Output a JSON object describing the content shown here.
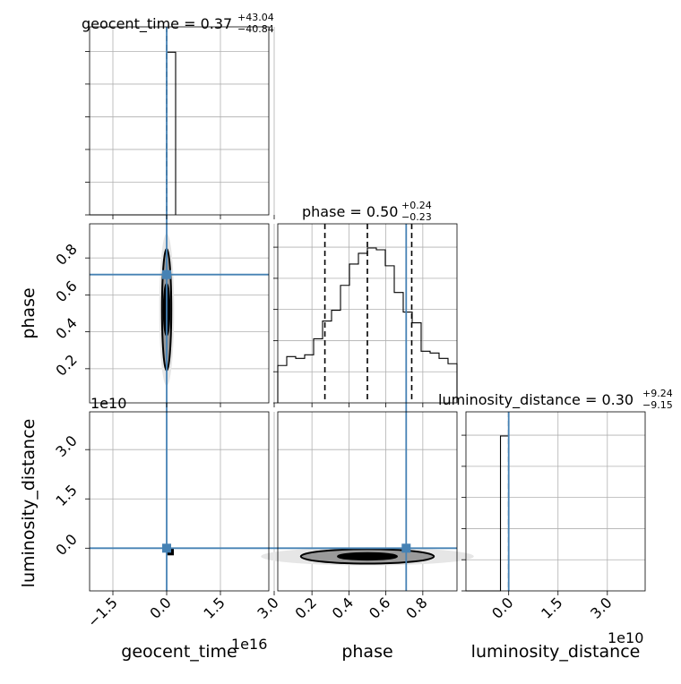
{
  "chart_data": {
    "type": "corner",
    "parameters": [
      "geocent_time",
      "phase",
      "luminosity_distance"
    ],
    "truth": {
      "geocent_time": 0.0,
      "phase": 0.71,
      "luminosity_distance": 0.0
    },
    "titles": {
      "geocent_time": {
        "prefix": "geocent_time = 0.37",
        "plus": "+43.04",
        "minus": "−40.84"
      },
      "phase": {
        "prefix": "phase = 0.50",
        "plus": "+0.24",
        "minus": "−0.23"
      },
      "luminosity_distance": {
        "prefix": "luminosity_distance = 0.30",
        "plus": "+9.24",
        "minus": "−9.15"
      }
    },
    "xlabels": {
      "geocent_time": "geocent_time",
      "phase": "phase",
      "luminosity_distance": "luminosity_distance"
    },
    "ylabels": {
      "phase": "phase",
      "luminosity_distance": "luminosity_distance"
    },
    "offsets": {
      "geocent_time_x": "1e16",
      "luminosity_distance_y": "1e10",
      "luminosity_distance_x": "1e10"
    },
    "ranges": {
      "geocent_time": [
        -2.15,
        2.85
      ],
      "phase": [
        0.015,
        0.985
      ],
      "luminosity_distance": [
        -1.3,
        4.15
      ]
    },
    "ticks": {
      "geocent_time": {
        "values": [
          -1.5,
          0.0,
          1.5,
          3.0
        ],
        "labels": [
          "−1.5",
          "0.0",
          "1.5",
          "3.0"
        ]
      },
      "phase": {
        "values": [
          0.2,
          0.4,
          0.6,
          0.8
        ],
        "labels": [
          "0.2",
          "0.4",
          "0.6",
          "0.8"
        ]
      },
      "luminosity_distance": {
        "values": [
          0.0,
          1.5,
          3.0
        ],
        "labels": [
          "0.0",
          "1.5",
          "3.0"
        ]
      }
    },
    "quantile_lines": {
      "geocent_time": [
        0.0
      ],
      "phase": [
        0.27,
        0.5,
        0.74
      ],
      "luminosity_distance": [
        0.0
      ]
    },
    "hist_geocent_time": {
      "edges": [
        -2.15,
        0.0,
        0.25
      ],
      "counts": [
        0,
        1.0
      ]
    },
    "hist_luminosity_distance": {
      "edges": [
        -1.3,
        -0.25,
        0.0
      ],
      "counts": [
        0,
        1.0
      ]
    },
    "hist_phase": {
      "edges": [
        0.015,
        0.0635,
        0.112,
        0.1605,
        0.209,
        0.2575,
        0.306,
        0.3545,
        0.403,
        0.4515,
        0.5,
        0.5485,
        0.597,
        0.6455,
        0.694,
        0.7425,
        0.791,
        0.8395,
        0.888,
        0.9365,
        0.985
      ],
      "counts": [
        0.21,
        0.26,
        0.25,
        0.27,
        0.36,
        0.46,
        0.52,
        0.66,
        0.78,
        0.84,
        0.87,
        0.86,
        0.77,
        0.62,
        0.51,
        0.45,
        0.29,
        0.28,
        0.25,
        0.22
      ]
    },
    "contours_phase_vs_geocent_time": {
      "center": [
        0.0,
        0.52
      ],
      "rx": [
        0.08,
        0.13
      ],
      "ry": [
        0.14,
        0.33
      ]
    },
    "contours_distance_vs_phase": {
      "center": [
        0.5,
        -0.25
      ],
      "rx": [
        0.16,
        0.36
      ],
      "ry": [
        0.1,
        0.22
      ]
    }
  }
}
